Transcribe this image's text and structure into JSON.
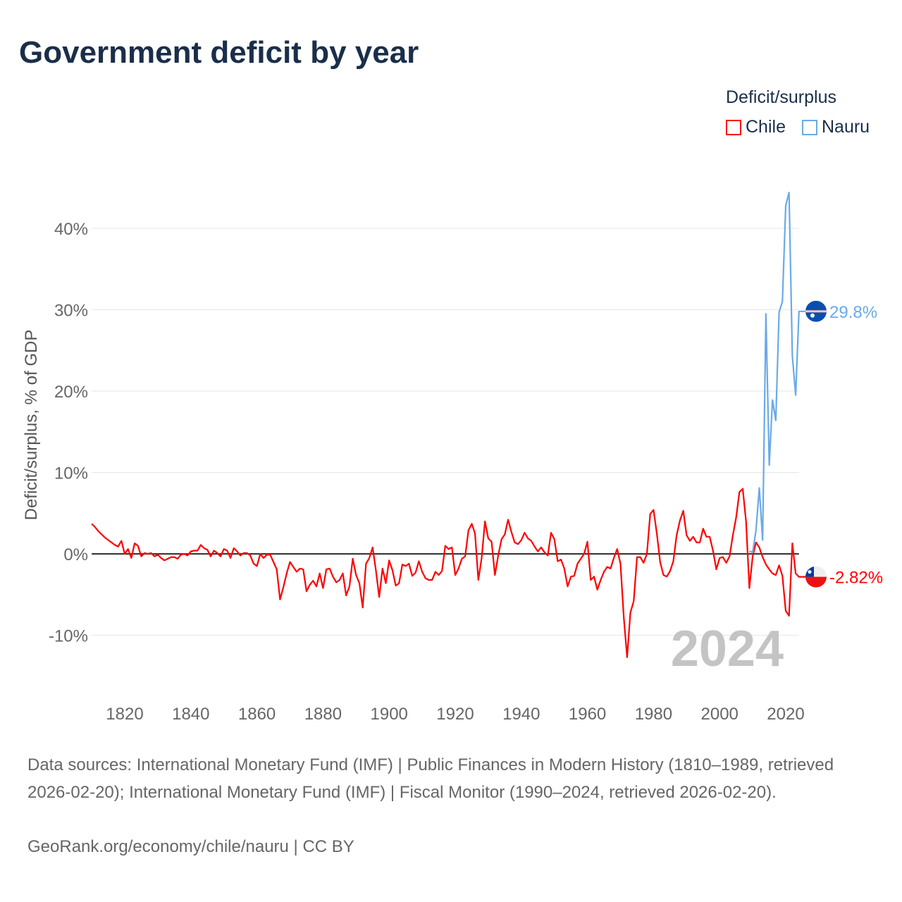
{
  "title": "Government deficit by year",
  "legend": {
    "title": "Deficit/surplus",
    "items": [
      {
        "label": "Chile",
        "color": "#ff0000"
      },
      {
        "label": "Nauru",
        "color": "#6aaae8"
      }
    ]
  },
  "chart_data": {
    "type": "line",
    "title": "Government deficit by year",
    "xlabel": "",
    "ylabel": "Deficit/surplus, % of GDP",
    "xlim": [
      1810,
      2024
    ],
    "ylim": [
      -13,
      45
    ],
    "x_ticks": [
      "1820",
      "1840",
      "1860",
      "1880",
      "1900",
      "1920",
      "1940",
      "1960",
      "1980",
      "2000",
      "2020"
    ],
    "y_ticks": [
      {
        "value": -10,
        "label": "-10%"
      },
      {
        "value": 0,
        "label": "0%"
      },
      {
        "value": 10,
        "label": "10%"
      },
      {
        "value": 20,
        "label": "20%"
      },
      {
        "value": 30,
        "label": "30%"
      },
      {
        "value": 40,
        "label": "40%"
      }
    ],
    "year_watermark": "2024",
    "series": [
      {
        "name": "Chile",
        "color": "#ff0000",
        "start_year": 1810,
        "end_label": "-2.82%",
        "flag": "chile",
        "values": [
          3.7,
          3.3,
          2.8,
          2.4,
          2.0,
          1.7,
          1.4,
          1.1,
          0.9,
          1.6,
          0.0,
          0.6,
          -0.5,
          1.3,
          1.0,
          -0.3,
          0.1,
          0.0,
          0.1,
          -0.3,
          -0.1,
          -0.5,
          -0.8,
          -0.6,
          -0.4,
          -0.4,
          -0.6,
          -0.1,
          0.0,
          -0.2,
          0.3,
          0.4,
          0.4,
          1.1,
          0.7,
          0.5,
          -0.3,
          0.4,
          0.1,
          -0.3,
          0.6,
          0.4,
          -0.5,
          0.7,
          0.3,
          -0.2,
          0.1,
          0.1,
          -0.2,
          -1.2,
          -1.5,
          0.0,
          -0.5,
          -0.1,
          -0.1,
          -1.0,
          -1.9,
          -5.6,
          -4.1,
          -2.4,
          -1.0,
          -1.6,
          -2.2,
          -1.8,
          -1.9,
          -4.6,
          -3.8,
          -3.3,
          -4.0,
          -2.4,
          -4.2,
          -1.9,
          -1.8,
          -2.8,
          -3.5,
          -3.2,
          -2.4,
          -5.1,
          -4.0,
          -0.6,
          -2.6,
          -3.6,
          -6.6,
          -1.2,
          -0.5,
          0.8,
          -2.0,
          -5.3,
          -1.8,
          -3.6,
          -0.8,
          -2.0,
          -3.9,
          -3.6,
          -1.3,
          -1.5,
          -1.2,
          -2.7,
          -2.3,
          -0.9,
          -2.2,
          -3.0,
          -3.2,
          -3.2,
          -2.2,
          -2.6,
          -2.1,
          1.0,
          0.6,
          0.8,
          -2.6,
          -1.8,
          -0.6,
          -0.3,
          2.9,
          3.7,
          2.5,
          -3.2,
          -0.5,
          4.0,
          1.9,
          1.5,
          -2.6,
          -0.2,
          1.8,
          2.4,
          4.2,
          2.7,
          1.4,
          1.2,
          1.7,
          2.6,
          1.9,
          1.6,
          0.9,
          0.3,
          0.8,
          0.2,
          -0.2,
          2.6,
          1.8,
          -0.9,
          -0.7,
          -1.8,
          -4.0,
          -2.8,
          -2.7,
          -1.2,
          -0.6,
          0.0,
          1.5,
          -3.2,
          -2.8,
          -4.4,
          -3.2,
          -2.2,
          -1.6,
          -1.8,
          -0.5,
          0.6,
          -1.2,
          -7.8,
          -12.7,
          -7.2,
          -5.8,
          -0.4,
          -0.4,
          -1.1,
          0.0,
          4.9,
          5.4,
          2.5,
          -1.0,
          -2.6,
          -2.8,
          -2.1,
          -0.9,
          2.3,
          4.1,
          5.3,
          2.3,
          1.6,
          2.1,
          1.4,
          1.4,
          3.1,
          2.1,
          2.1,
          0.4,
          -1.9,
          -0.5,
          -0.4,
          -1.1,
          -0.3,
          2.3,
          4.5,
          7.6,
          8.0,
          4.0,
          -4.2,
          -0.3,
          1.4,
          0.8,
          -0.4,
          -1.3,
          -1.9,
          -2.4,
          -2.6,
          -1.4,
          -2.7,
          -7.0,
          -7.6,
          1.3,
          -2.4,
          -2.82
        ]
      },
      {
        "name": "Nauru",
        "color": "#6aaae8",
        "start_year": 2009,
        "end_label": "29.8%",
        "flag": "nauru",
        "values": [
          0.3,
          0.2,
          2.9,
          8.1,
          1.7,
          29.5,
          10.9,
          18.9,
          16.4,
          29.7,
          31.0,
          42.8,
          44.4,
          24.3,
          19.5,
          29.8
        ]
      }
    ]
  },
  "footer": {
    "sources": "Data sources: International Monetary Fund (IMF) | Public Finances in Modern History (1810–1989, retrieved 2026-02-20); International Monetary Fund (IMF) | Fiscal Monitor (1990–2024, retrieved 2026-02-20).",
    "attribution": "GeoRank.org/economy/chile/nauru | CC BY"
  }
}
